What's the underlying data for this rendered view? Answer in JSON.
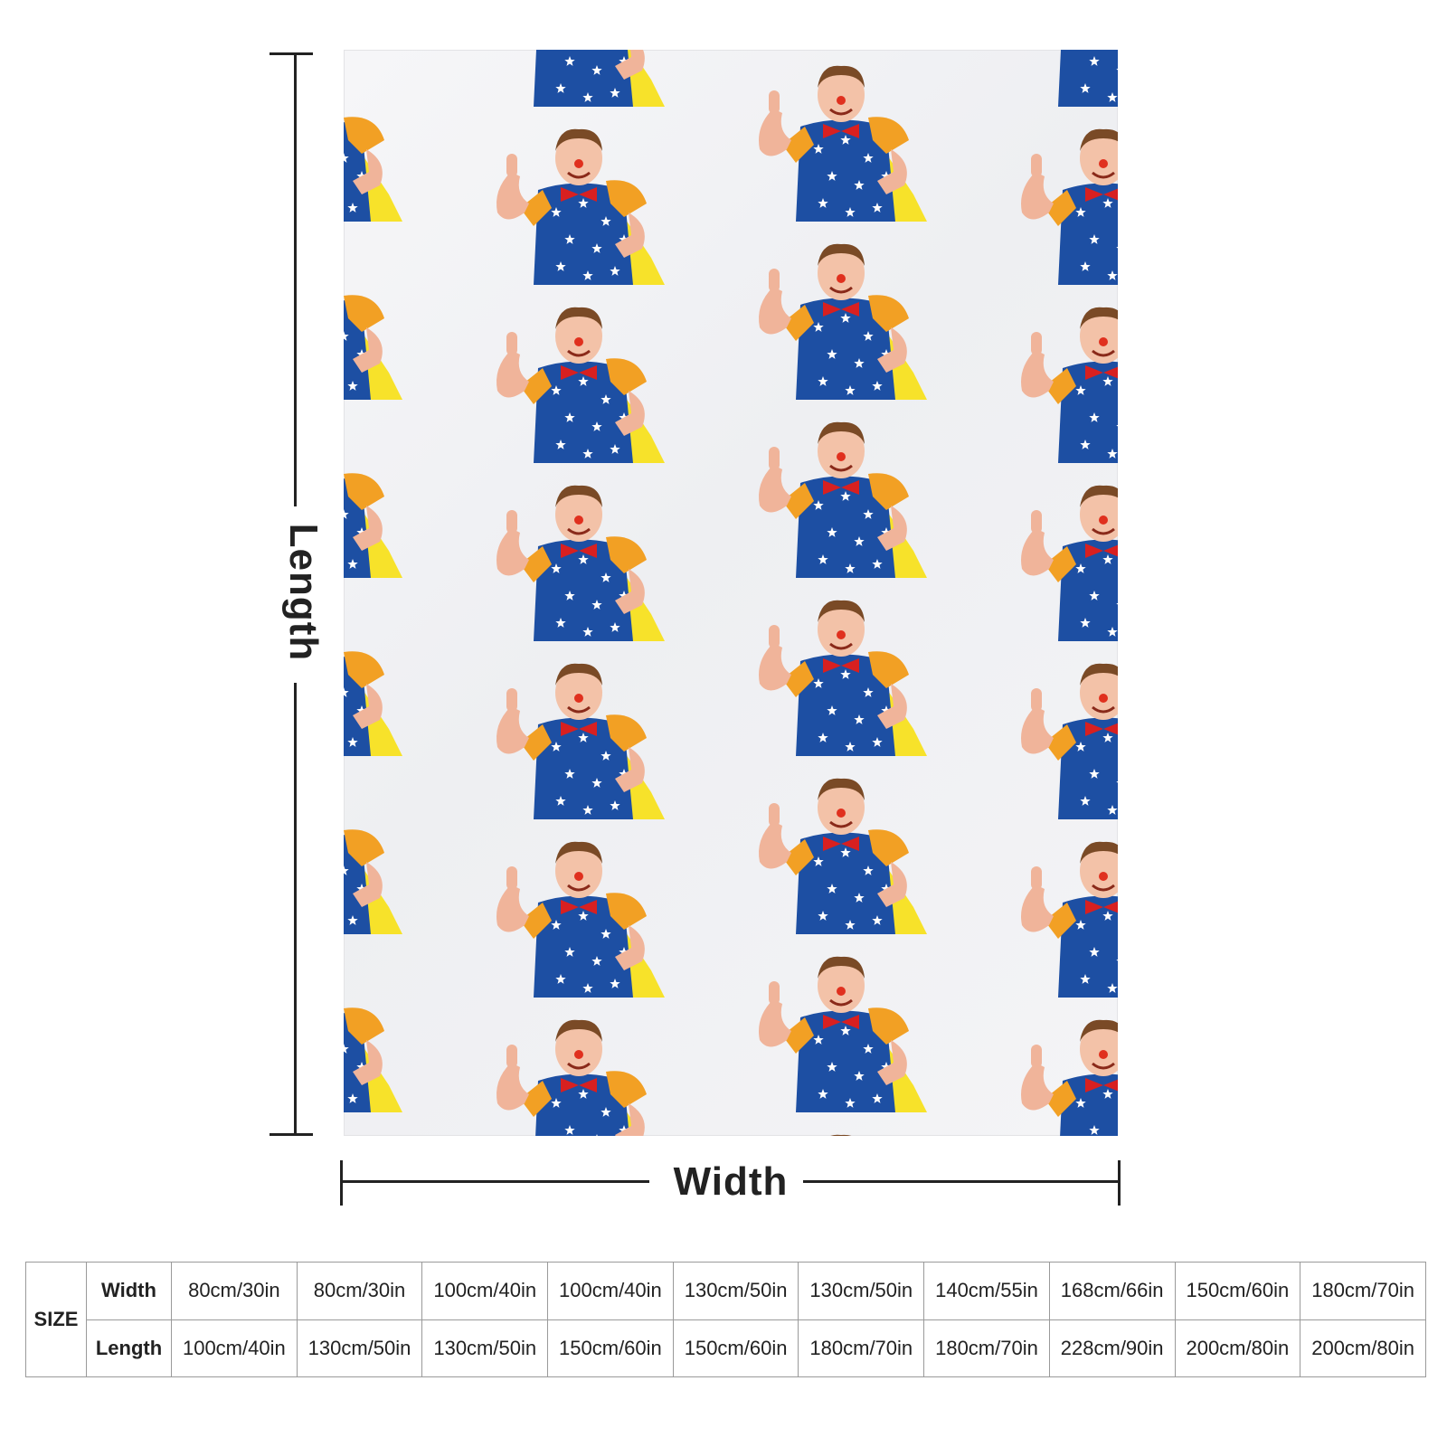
{
  "diagram": {
    "length_label": "Length",
    "width_label": "Width"
  },
  "blanket": {
    "pattern_icon": "clown-figure-icon",
    "background_color": "#f2f2f4"
  },
  "size_table": {
    "size_label": "SIZE",
    "width_label": "Width",
    "length_label": "Length",
    "widths": [
      "80cm/30in",
      "80cm/30in",
      "100cm/40in",
      "100cm/40in",
      "130cm/50in",
      "130cm/50in",
      "140cm/55in",
      "168cm/66in",
      "150cm/60in",
      "180cm/70in"
    ],
    "lengths": [
      "100cm/40in",
      "130cm/50in",
      "130cm/50in",
      "150cm/60in",
      "150cm/60in",
      "180cm/70in",
      "180cm/70in",
      "228cm/90in",
      "200cm/80in",
      "200cm/80in"
    ]
  }
}
